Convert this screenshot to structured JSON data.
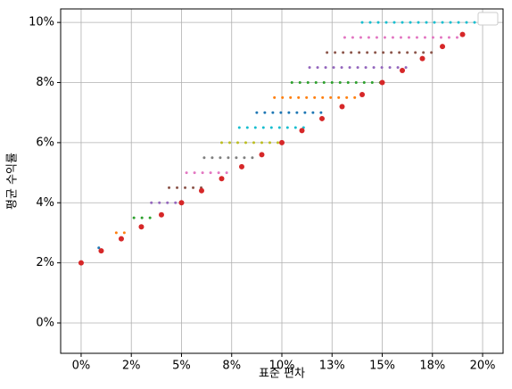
{
  "chart_data": {
    "type": "scatter",
    "xlabel": "표준 편차",
    "ylabel": "평균 수익률",
    "xlim": [
      -0.0102,
      0.2102
    ],
    "ylim": [
      -0.0101,
      0.1045
    ],
    "grid": true,
    "xticks": [
      {
        "value": 0,
        "label": "0%"
      },
      {
        "value": 0.025,
        "label": "2%"
      },
      {
        "value": 0.05,
        "label": "5%"
      },
      {
        "value": 0.075,
        "label": "8%"
      },
      {
        "value": 0.1,
        "label": "10%"
      },
      {
        "value": 0.125,
        "label": "13%"
      },
      {
        "value": 0.15,
        "label": "15%"
      },
      {
        "value": 0.175,
        "label": "18%"
      },
      {
        "value": 0.2,
        "label": "20%"
      }
    ],
    "yticks": [
      {
        "value": 0,
        "label": "0%"
      },
      {
        "value": 0.02,
        "label": "2%"
      },
      {
        "value": 0.04,
        "label": "4%"
      },
      {
        "value": 0.06,
        "label": "6%"
      },
      {
        "value": 0.08,
        "label": "8%"
      },
      {
        "value": 0.1,
        "label": "10%"
      }
    ],
    "series": [
      {
        "color": "#1f77b4",
        "x": [
          0.0088
        ],
        "values": [
          0.025
        ]
      },
      {
        "color": "#ff7f0e",
        "x": [
          0.0175,
          0.0215
        ],
        "values": [
          0.03,
          0.03
        ]
      },
      {
        "color": "#2ca02c",
        "x": [
          0.0263,
          0.0303,
          0.0343
        ],
        "values": [
          0.035,
          0.035,
          0.035
        ]
      },
      {
        "color": "#9467bd",
        "x": [
          0.035,
          0.039,
          0.043,
          0.047
        ],
        "values": [
          0.04,
          0.04,
          0.04,
          0.04
        ]
      },
      {
        "color": "#8c564b",
        "x": [
          0.0438,
          0.0478,
          0.0518,
          0.0558,
          0.0598
        ],
        "values": [
          0.045,
          0.045,
          0.045,
          0.045,
          0.045
        ]
      },
      {
        "color": "#e377c2",
        "x": [
          0.0525,
          0.0565,
          0.0605,
          0.0645,
          0.0685,
          0.0725
        ],
        "values": [
          0.05,
          0.05,
          0.05,
          0.05,
          0.05,
          0.05
        ]
      },
      {
        "color": "#7f7f7f",
        "x": [
          0.0613,
          0.0653,
          0.0693,
          0.0733,
          0.0773,
          0.0813,
          0.0853
        ],
        "values": [
          0.055,
          0.055,
          0.055,
          0.055,
          0.055,
          0.055,
          0.055
        ]
      },
      {
        "color": "#bcbd22",
        "x": [
          0.07,
          0.074,
          0.078,
          0.082,
          0.086,
          0.09,
          0.094,
          0.098
        ],
        "values": [
          0.06,
          0.06,
          0.06,
          0.06,
          0.06,
          0.06,
          0.06,
          0.06
        ]
      },
      {
        "color": "#17becf",
        "x": [
          0.0788,
          0.0828,
          0.0868,
          0.0908,
          0.0948,
          0.0988,
          0.1028,
          0.1068,
          0.1108
        ],
        "values": [
          0.065,
          0.065,
          0.065,
          0.065,
          0.065,
          0.065,
          0.065,
          0.065,
          0.065
        ]
      },
      {
        "color": "#1f77b4",
        "x": [
          0.0875,
          0.0915,
          0.0955,
          0.0995,
          0.1035,
          0.1075,
          0.1115,
          0.1155,
          0.1195
        ],
        "values": [
          0.07,
          0.07,
          0.07,
          0.07,
          0.07,
          0.07,
          0.07,
          0.07,
          0.07
        ]
      },
      {
        "color": "#ff7f0e",
        "x": [
          0.0963,
          0.1003,
          0.1043,
          0.1083,
          0.1123,
          0.1163,
          0.1203,
          0.1243,
          0.1283,
          0.1323,
          0.1363
        ],
        "values": [
          0.075,
          0.075,
          0.075,
          0.075,
          0.075,
          0.075,
          0.075,
          0.075,
          0.075,
          0.075,
          0.075
        ]
      },
      {
        "color": "#2ca02c",
        "x": [
          0.105,
          0.109,
          0.113,
          0.117,
          0.121,
          0.125,
          0.129,
          0.133,
          0.137,
          0.141,
          0.145,
          0.149
        ],
        "values": [
          0.08,
          0.08,
          0.08,
          0.08,
          0.08,
          0.08,
          0.08,
          0.08,
          0.08,
          0.08,
          0.08,
          0.08
        ]
      },
      {
        "color": "#9467bd",
        "x": [
          0.1138,
          0.1178,
          0.1218,
          0.1258,
          0.1298,
          0.1338,
          0.1378,
          0.1418,
          0.1458,
          0.1498,
          0.1538,
          0.1578,
          0.1618
        ],
        "values": [
          0.085,
          0.085,
          0.085,
          0.085,
          0.085,
          0.085,
          0.085,
          0.085,
          0.085,
          0.085,
          0.085,
          0.085,
          0.085
        ]
      },
      {
        "color": "#8c564b",
        "x": [
          0.1225,
          0.1265,
          0.1305,
          0.1345,
          0.1385,
          0.1425,
          0.1465,
          0.1505,
          0.1545,
          0.1585,
          0.1625,
          0.1665,
          0.1705,
          0.1745
        ],
        "values": [
          0.09,
          0.09,
          0.09,
          0.09,
          0.09,
          0.09,
          0.09,
          0.09,
          0.09,
          0.09,
          0.09,
          0.09,
          0.09,
          0.09
        ]
      },
      {
        "color": "#e377c2",
        "x": [
          0.1313,
          0.1353,
          0.1393,
          0.1433,
          0.1473,
          0.1513,
          0.1553,
          0.1593,
          0.1633,
          0.1673,
          0.1713,
          0.1753,
          0.1793,
          0.1833,
          0.1873
        ],
        "values": [
          0.095,
          0.095,
          0.095,
          0.095,
          0.095,
          0.095,
          0.095,
          0.095,
          0.095,
          0.095,
          0.095,
          0.095,
          0.095,
          0.095,
          0.095
        ]
      },
      {
        "color": "#17becf",
        "x": [
          0.14,
          0.144,
          0.148,
          0.152,
          0.156,
          0.16,
          0.164,
          0.168,
          0.172,
          0.176,
          0.18,
          0.184,
          0.188,
          0.192,
          0.196
        ],
        "values": [
          0.1,
          0.1,
          0.1,
          0.1,
          0.1,
          0.1,
          0.1,
          0.1,
          0.1,
          0.1,
          0.1,
          0.1,
          0.1,
          0.1,
          0.1
        ]
      },
      {
        "color": "#d62728",
        "marker_size": 3,
        "x": [
          0,
          0.01,
          0.02,
          0.03,
          0.04,
          0.05,
          0.06,
          0.07,
          0.08,
          0.09,
          0.1,
          0.11,
          0.12,
          0.13,
          0.14,
          0.15,
          0.16,
          0.17,
          0.18,
          0.19,
          0.2
        ],
        "values": [
          0.02,
          0.024,
          0.028,
          0.032,
          0.036,
          0.04,
          0.044,
          0.048,
          0.052,
          0.056,
          0.06,
          0.064,
          0.068,
          0.072,
          0.076,
          0.08,
          0.084,
          0.088,
          0.092,
          0.096,
          0.1
        ]
      }
    ]
  }
}
